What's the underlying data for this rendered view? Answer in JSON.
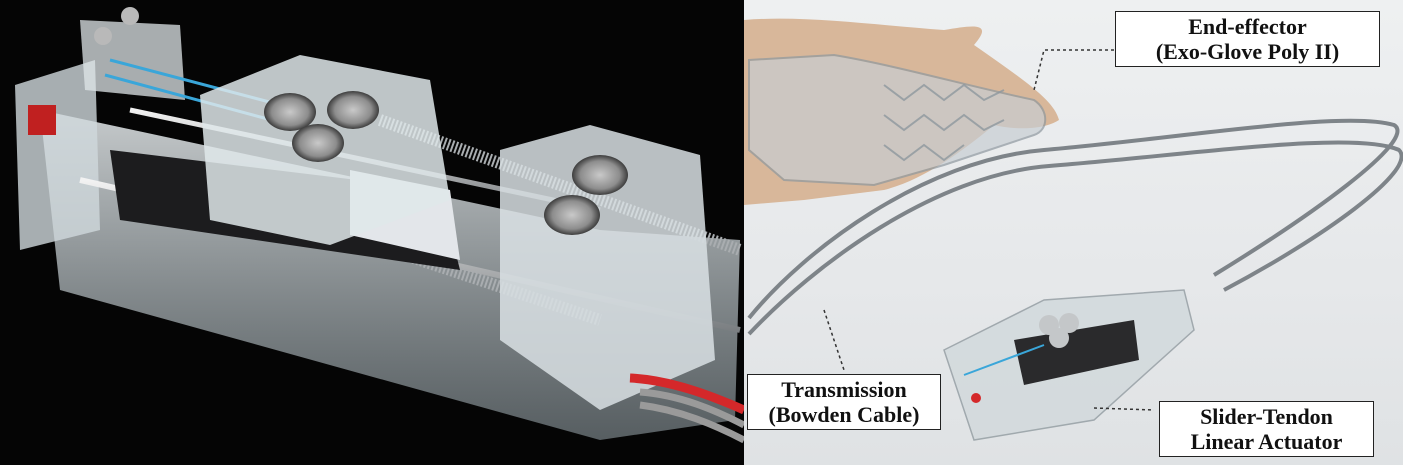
{
  "labels": {
    "end_effector": {
      "line1": "End-effector",
      "line2": "(Exo-Glove Poly II)"
    },
    "transmission": {
      "line1": "Transmission",
      "line2": "(Bowden Cable)"
    },
    "actuator": {
      "line1": "Slider-Tendon",
      "line2": "Linear Actuator"
    }
  },
  "colors": {
    "tendon": "#3aa6d9",
    "wire_red": "#d4282a",
    "background_left": "#050505",
    "background_right": "#e8eaec"
  }
}
